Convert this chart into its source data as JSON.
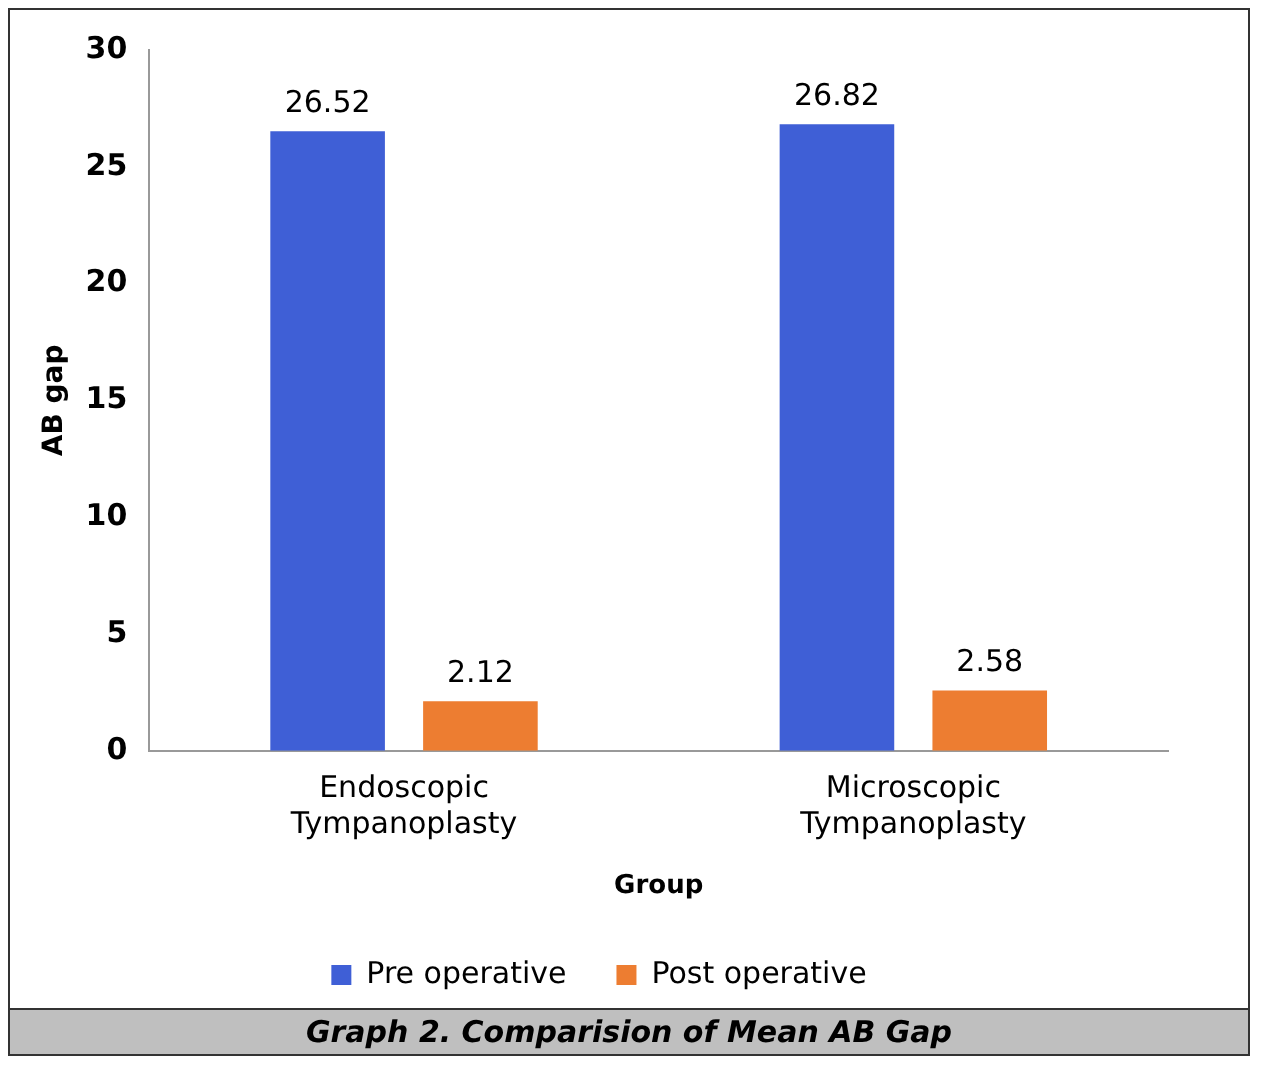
{
  "chart_data": {
    "type": "bar",
    "title": "Graph 2. Comparision of Mean AB Gap",
    "xlabel": "Group",
    "ylabel": "AB gap",
    "categories": [
      "Endoscopic Tympanoplasty",
      "Microscopic Tympanoplasty"
    ],
    "series": [
      {
        "name": "Pre operative",
        "color": "#3f5fd6",
        "values": [
          26.52,
          26.82
        ]
      },
      {
        "name": "Post operative",
        "color": "#ed7d31",
        "values": [
          2.12,
          2.58
        ]
      }
    ],
    "ylim": [
      0,
      30
    ],
    "yticks": [
      0,
      5,
      10,
      15,
      20,
      25,
      30
    ],
    "grid": false,
    "legend": "bottom",
    "data_labels": true
  }
}
